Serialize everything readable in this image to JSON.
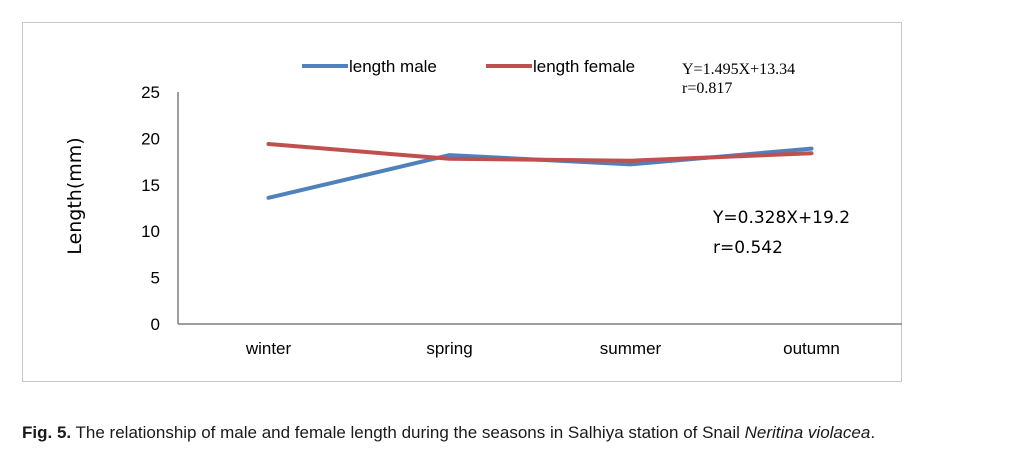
{
  "chart_data": {
    "type": "line",
    "categories": [
      "winter",
      "spring",
      "summer",
      "outumn"
    ],
    "series": [
      {
        "name": "length male",
        "values": [
          13.6,
          18.2,
          17.2,
          18.9
        ],
        "color": "#4f81bd"
      },
      {
        "name": "length female",
        "values": [
          19.4,
          17.8,
          17.6,
          18.4
        ],
        "color": "#c0504d"
      }
    ],
    "ylabel": "Length(mm)",
    "ylim": [
      0,
      25
    ],
    "yticks": [
      "0",
      "5",
      "10",
      "15",
      "20",
      "25"
    ],
    "grid": false,
    "legend": "top",
    "annotations": [
      {
        "line1": "Y=1.495X+13.34",
        "line2": "r=0.817"
      },
      {
        "line1": "Y=0.328X+19.2",
        "line2": "r=0.542"
      }
    ]
  },
  "caption": {
    "label": "Fig. 5.",
    "text": " The relationship of male and female length during the seasons in Salhiya station of Snail ",
    "species": "Neritina violacea",
    "end": "."
  }
}
